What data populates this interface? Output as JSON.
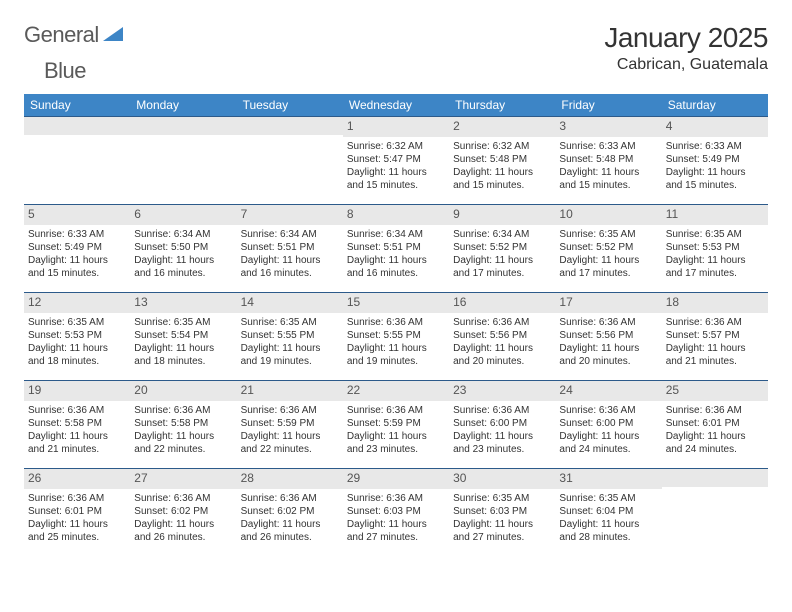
{
  "logo": {
    "text_a": "General",
    "text_b": "Blue"
  },
  "title": "January 2025",
  "location": "Cabrican, Guatemala",
  "colors": {
    "header_bg": "#3d85c6",
    "header_fg": "#ffffff",
    "row_border": "#2c5a8a",
    "daynum_bg": "#e8e8e8",
    "logo_icon": "#3d85c6"
  },
  "weekdays": [
    "Sunday",
    "Monday",
    "Tuesday",
    "Wednesday",
    "Thursday",
    "Friday",
    "Saturday"
  ],
  "weeks": [
    [
      null,
      null,
      null,
      {
        "n": "1",
        "sr": "6:32 AM",
        "ss": "5:47 PM",
        "dl": "11 hours and 15 minutes."
      },
      {
        "n": "2",
        "sr": "6:32 AM",
        "ss": "5:48 PM",
        "dl": "11 hours and 15 minutes."
      },
      {
        "n": "3",
        "sr": "6:33 AM",
        "ss": "5:48 PM",
        "dl": "11 hours and 15 minutes."
      },
      {
        "n": "4",
        "sr": "6:33 AM",
        "ss": "5:49 PM",
        "dl": "11 hours and 15 minutes."
      }
    ],
    [
      {
        "n": "5",
        "sr": "6:33 AM",
        "ss": "5:49 PM",
        "dl": "11 hours and 15 minutes."
      },
      {
        "n": "6",
        "sr": "6:34 AM",
        "ss": "5:50 PM",
        "dl": "11 hours and 16 minutes."
      },
      {
        "n": "7",
        "sr": "6:34 AM",
        "ss": "5:51 PM",
        "dl": "11 hours and 16 minutes."
      },
      {
        "n": "8",
        "sr": "6:34 AM",
        "ss": "5:51 PM",
        "dl": "11 hours and 16 minutes."
      },
      {
        "n": "9",
        "sr": "6:34 AM",
        "ss": "5:52 PM",
        "dl": "11 hours and 17 minutes."
      },
      {
        "n": "10",
        "sr": "6:35 AM",
        "ss": "5:52 PM",
        "dl": "11 hours and 17 minutes."
      },
      {
        "n": "11",
        "sr": "6:35 AM",
        "ss": "5:53 PM",
        "dl": "11 hours and 17 minutes."
      }
    ],
    [
      {
        "n": "12",
        "sr": "6:35 AM",
        "ss": "5:53 PM",
        "dl": "11 hours and 18 minutes."
      },
      {
        "n": "13",
        "sr": "6:35 AM",
        "ss": "5:54 PM",
        "dl": "11 hours and 18 minutes."
      },
      {
        "n": "14",
        "sr": "6:35 AM",
        "ss": "5:55 PM",
        "dl": "11 hours and 19 minutes."
      },
      {
        "n": "15",
        "sr": "6:36 AM",
        "ss": "5:55 PM",
        "dl": "11 hours and 19 minutes."
      },
      {
        "n": "16",
        "sr": "6:36 AM",
        "ss": "5:56 PM",
        "dl": "11 hours and 20 minutes."
      },
      {
        "n": "17",
        "sr": "6:36 AM",
        "ss": "5:56 PM",
        "dl": "11 hours and 20 minutes."
      },
      {
        "n": "18",
        "sr": "6:36 AM",
        "ss": "5:57 PM",
        "dl": "11 hours and 21 minutes."
      }
    ],
    [
      {
        "n": "19",
        "sr": "6:36 AM",
        "ss": "5:58 PM",
        "dl": "11 hours and 21 minutes."
      },
      {
        "n": "20",
        "sr": "6:36 AM",
        "ss": "5:58 PM",
        "dl": "11 hours and 22 minutes."
      },
      {
        "n": "21",
        "sr": "6:36 AM",
        "ss": "5:59 PM",
        "dl": "11 hours and 22 minutes."
      },
      {
        "n": "22",
        "sr": "6:36 AM",
        "ss": "5:59 PM",
        "dl": "11 hours and 23 minutes."
      },
      {
        "n": "23",
        "sr": "6:36 AM",
        "ss": "6:00 PM",
        "dl": "11 hours and 23 minutes."
      },
      {
        "n": "24",
        "sr": "6:36 AM",
        "ss": "6:00 PM",
        "dl": "11 hours and 24 minutes."
      },
      {
        "n": "25",
        "sr": "6:36 AM",
        "ss": "6:01 PM",
        "dl": "11 hours and 24 minutes."
      }
    ],
    [
      {
        "n": "26",
        "sr": "6:36 AM",
        "ss": "6:01 PM",
        "dl": "11 hours and 25 minutes."
      },
      {
        "n": "27",
        "sr": "6:36 AM",
        "ss": "6:02 PM",
        "dl": "11 hours and 26 minutes."
      },
      {
        "n": "28",
        "sr": "6:36 AM",
        "ss": "6:02 PM",
        "dl": "11 hours and 26 minutes."
      },
      {
        "n": "29",
        "sr": "6:36 AM",
        "ss": "6:03 PM",
        "dl": "11 hours and 27 minutes."
      },
      {
        "n": "30",
        "sr": "6:35 AM",
        "ss": "6:03 PM",
        "dl": "11 hours and 27 minutes."
      },
      {
        "n": "31",
        "sr": "6:35 AM",
        "ss": "6:04 PM",
        "dl": "11 hours and 28 minutes."
      },
      null
    ]
  ],
  "labels": {
    "sunrise": "Sunrise:",
    "sunset": "Sunset:",
    "daylight": "Daylight:"
  }
}
